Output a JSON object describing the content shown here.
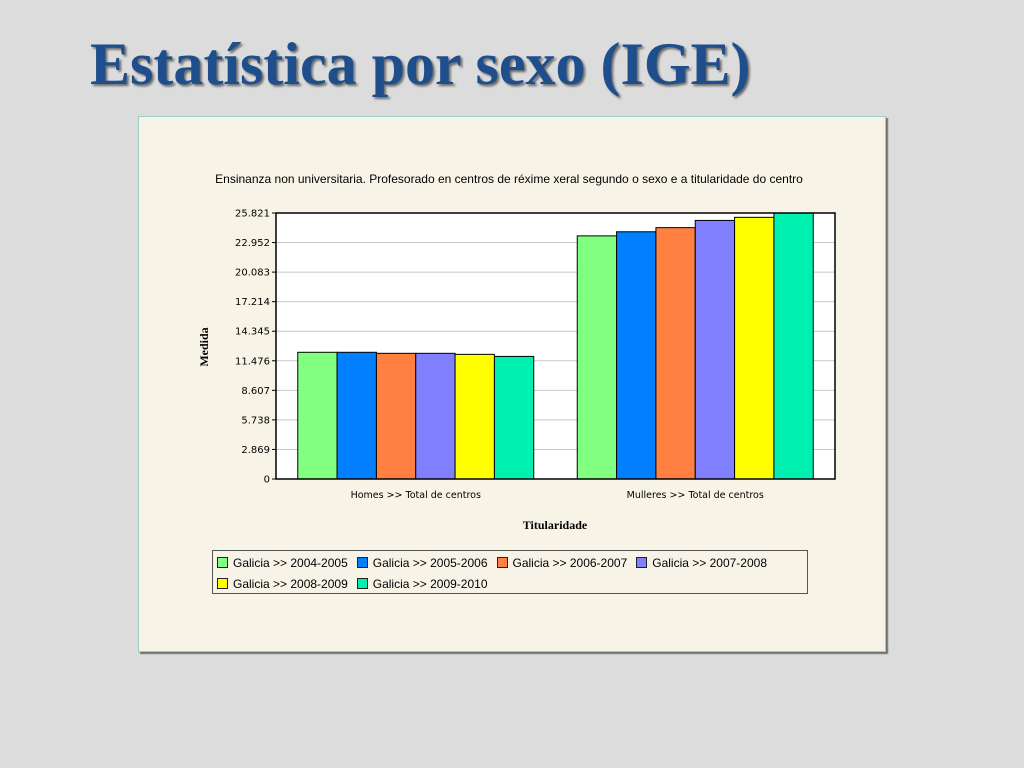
{
  "slide": {
    "title": "Estatística por sexo (IGE)"
  },
  "chart_data": {
    "type": "bar",
    "title": "Ensinanza non universitaria. Profesorado en centros de réxime xeral segundo o sexo e a titularidade do centro",
    "xlabel": "Titularidade",
    "ylabel": "Medida",
    "categories": [
      "Homes >> Total de centros",
      "Mulleres >> Total de centros"
    ],
    "series": [
      {
        "name": "Galicia >> 2004-2005",
        "color": "#80ff80",
        "values": [
          12.3,
          23.6
        ]
      },
      {
        "name": "Galicia >> 2005-2006",
        "color": "#0080ff",
        "values": [
          12.3,
          24.0
        ]
      },
      {
        "name": "Galicia >> 2006-2007",
        "color": "#ff8040",
        "values": [
          12.2,
          24.4
        ]
      },
      {
        "name": "Galicia >> 2007-2008",
        "color": "#8080ff",
        "values": [
          12.2,
          25.1
        ]
      },
      {
        "name": "Galicia >> 2008-2009",
        "color": "#ffff00",
        "values": [
          12.1,
          25.4
        ]
      },
      {
        "name": "Galicia >> 2009-2010",
        "color": "#00f0b0",
        "values": [
          11.9,
          25.821
        ]
      }
    ],
    "yticks": [
      "0",
      "2.869",
      "5.738",
      "8.607",
      "11.476",
      "14.345",
      "17.214",
      "20.083",
      "22.952",
      "25.821"
    ],
    "ylim": [
      0,
      25.821
    ],
    "grid": true,
    "legend_position": "bottom"
  }
}
